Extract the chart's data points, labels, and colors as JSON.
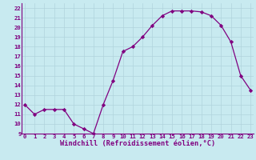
{
  "x": [
    0,
    1,
    2,
    3,
    4,
    5,
    6,
    7,
    8,
    9,
    10,
    11,
    12,
    13,
    14,
    15,
    16,
    17,
    18,
    19,
    20,
    21,
    22,
    23
  ],
  "y": [
    12,
    11,
    11.5,
    11.5,
    11.5,
    10,
    9.5,
    9,
    12,
    14.5,
    17.5,
    18,
    19,
    20.2,
    21.2,
    21.7,
    21.7,
    21.7,
    21.6,
    21.2,
    20.2,
    18.5,
    15,
    13.5
  ],
  "xlim": [
    0,
    23
  ],
  "ylim": [
    9,
    22.5
  ],
  "yticks": [
    9,
    10,
    11,
    12,
    13,
    14,
    15,
    16,
    17,
    18,
    19,
    20,
    21,
    22
  ],
  "xticks": [
    0,
    1,
    2,
    3,
    4,
    5,
    6,
    7,
    8,
    9,
    10,
    11,
    12,
    13,
    14,
    15,
    16,
    17,
    18,
    19,
    20,
    21,
    22,
    23
  ],
  "xlabel": "Windchill (Refroidissement éolien,°C)",
  "line_color": "#800080",
  "marker_color": "#800080",
  "bg_color": "#c8eaf0",
  "grid_color": "#b0d4dc",
  "tick_label_fontsize": 5.2,
  "xlabel_fontsize": 6.2
}
